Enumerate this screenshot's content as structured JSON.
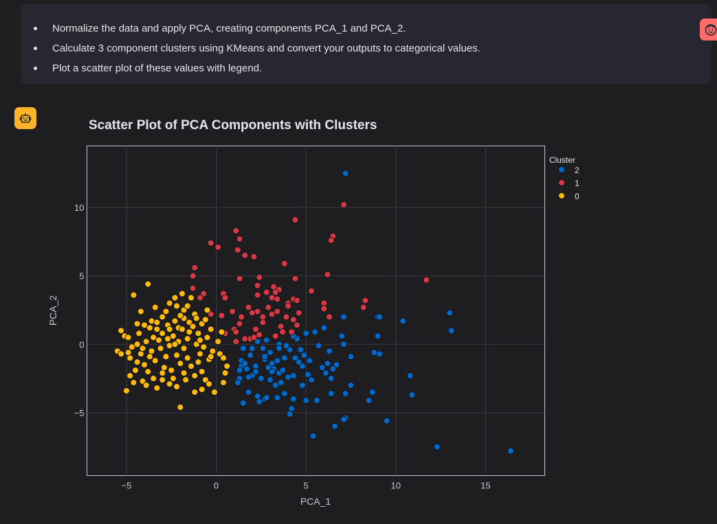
{
  "user_message": {
    "items": [
      "Normalize the data and apply PCA, creating components PCA_1 and PCA_2.",
      "Calculate 3 component clusters using KMeans and convert your outputs to categorical values.",
      "Plot a scatter plot of these values with legend."
    ],
    "avatar_icon": "user-face-icon"
  },
  "assistant": {
    "avatar_icon": "robot-icon"
  },
  "colors": {
    "cluster_2": "#0068c9",
    "cluster_1": "#d33a46",
    "cluster_0": "#fdb90f",
    "user_avatar": "#ff6b6b",
    "bot_avatar": "#fdb42b"
  },
  "chart_data": {
    "type": "scatter",
    "title": "Scatter Plot of PCA Components with Clusters",
    "xlabel": "PCA_1",
    "ylabel": "PCA_2",
    "xlim": [
      -7.2,
      18.3
    ],
    "ylim": [
      -9.6,
      14.5
    ],
    "xticks": [
      -5,
      0,
      5,
      10,
      15
    ],
    "yticks": [
      -5,
      0,
      5,
      10
    ],
    "grid": true,
    "legend": {
      "title": "Cluster",
      "placement": "right",
      "order": [
        "2",
        "1",
        "0"
      ]
    },
    "series": [
      {
        "name": "2",
        "color": "#0068c9",
        "points": [
          [
            7.2,
            12.5
          ],
          [
            13,
            2.3
          ],
          [
            13.1,
            1.0
          ],
          [
            10.4,
            1.7
          ],
          [
            9.0,
            2.0
          ],
          [
            9.1,
            2.0
          ],
          [
            7.1,
            2.0
          ],
          [
            9.0,
            0.6
          ],
          [
            8.8,
            -0.6
          ],
          [
            9.1,
            -0.7
          ],
          [
            7.5,
            -0.9
          ],
          [
            7.0,
            0.6
          ],
          [
            7.1,
            0
          ],
          [
            6.0,
            1.2
          ],
          [
            5.5,
            0.9
          ],
          [
            5.0,
            0.8
          ],
          [
            4.5,
            0.4
          ],
          [
            4.7,
            -0.4
          ],
          [
            4.1,
            -0.4
          ],
          [
            3.5,
            0
          ],
          [
            2.8,
            0.3
          ],
          [
            2.3,
            0.2
          ],
          [
            2.6,
            -0.3
          ],
          [
            2.0,
            -0.3
          ],
          [
            1.5,
            -0.3
          ],
          [
            1.4,
            -1.2
          ],
          [
            1.4,
            -1.6
          ],
          [
            1.7,
            -1.8
          ],
          [
            2.2,
            -1.6
          ],
          [
            2.7,
            -1.1
          ],
          [
            3.1,
            -1.4
          ],
          [
            3.4,
            -1.2
          ],
          [
            3.2,
            -1.8
          ],
          [
            3.5,
            -2.1
          ],
          [
            3.8,
            -1.0
          ],
          [
            4.4,
            -1.0
          ],
          [
            4.8,
            -1.6
          ],
          [
            5.1,
            -2.2
          ],
          [
            5.3,
            -2.6
          ],
          [
            4.8,
            -3.0
          ],
          [
            4.3,
            -2.3
          ],
          [
            4.0,
            -2.4
          ],
          [
            3.6,
            -2.8
          ],
          [
            3.0,
            -2.6
          ],
          [
            2.5,
            -2.5
          ],
          [
            2.2,
            -2.0
          ],
          [
            2.0,
            -2.3
          ],
          [
            1.8,
            -2.4
          ],
          [
            1.3,
            -1.9
          ],
          [
            1.3,
            -2.5
          ],
          [
            1.8,
            -3.5
          ],
          [
            2.3,
            -3.8
          ],
          [
            2.7,
            -4.0
          ],
          [
            3.4,
            -3.9
          ],
          [
            3.8,
            -3.6
          ],
          [
            4.3,
            -4.0
          ],
          [
            5.0,
            -4.1
          ],
          [
            5.6,
            -4.1
          ],
          [
            5.7,
            -0.1
          ],
          [
            6.3,
            -0.5
          ],
          [
            6.2,
            -1.4
          ],
          [
            6.7,
            -1.5
          ],
          [
            6.5,
            -1.8
          ],
          [
            6.1,
            -2.1
          ],
          [
            7.5,
            -3.0
          ],
          [
            7.2,
            -3.6
          ],
          [
            6.4,
            -3.6
          ],
          [
            4.2,
            -4.7
          ],
          [
            4.1,
            -5.1
          ],
          [
            5.4,
            -6.7
          ],
          [
            6.6,
            -6.0
          ],
          [
            7.2,
            -5.4
          ],
          [
            7.1,
            -5.5
          ],
          [
            8.5,
            -4.1
          ],
          [
            8.7,
            -3.5
          ],
          [
            9.5,
            -5.6
          ],
          [
            10.8,
            -2.3
          ],
          [
            10.9,
            -3.7
          ],
          [
            12.3,
            -7.5
          ],
          [
            16.4,
            -7.8
          ],
          [
            1.2,
            -2.8
          ],
          [
            3.0,
            -0.6
          ],
          [
            3.5,
            -0.3
          ],
          [
            4.3,
            0.6
          ],
          [
            2.7,
            -0.9
          ],
          [
            1.9,
            -0.8
          ],
          [
            3.7,
            -1.9
          ],
          [
            3.1,
            -2.0
          ],
          [
            1.6,
            -1.4
          ],
          [
            4.9,
            -0.8
          ],
          [
            5.2,
            -1.2
          ],
          [
            4.6,
            -1.3
          ],
          [
            3.3,
            -3.0
          ],
          [
            2.8,
            -3.9
          ],
          [
            2.4,
            -4.2
          ],
          [
            1.5,
            -4.3
          ],
          [
            5.9,
            -1.7
          ],
          [
            6.4,
            -2.5
          ],
          [
            3.9,
            -0.1
          ],
          [
            2.9,
            -1.7
          ]
        ]
      },
      {
        "name": "1",
        "color": "#d33a46",
        "points": [
          [
            7.1,
            10.2
          ],
          [
            4.4,
            9.1
          ],
          [
            6.5,
            7.9
          ],
          [
            6.4,
            7.6
          ],
          [
            1.1,
            8.3
          ],
          [
            1.3,
            7.7
          ],
          [
            -0.3,
            7.4
          ],
          [
            0.1,
            7.1
          ],
          [
            1.2,
            6.9
          ],
          [
            1.6,
            6.5
          ],
          [
            2.1,
            6.4
          ],
          [
            3.8,
            5.9
          ],
          [
            -1.2,
            5.6
          ],
          [
            6.2,
            5.1
          ],
          [
            11.7,
            4.7
          ],
          [
            1.3,
            4.8
          ],
          [
            -1.3,
            5.0
          ],
          [
            2.4,
            4.9
          ],
          [
            4.4,
            4.8
          ],
          [
            2.3,
            4.3
          ],
          [
            3.2,
            4.2
          ],
          [
            3.5,
            4.0
          ],
          [
            2.8,
            3.8
          ],
          [
            3.3,
            3.8
          ],
          [
            -1.3,
            4.1
          ],
          [
            -0.7,
            3.7
          ],
          [
            0.4,
            3.7
          ],
          [
            5.3,
            3.9
          ],
          [
            2.3,
            3.6
          ],
          [
            3.1,
            3.4
          ],
          [
            3.4,
            3.3
          ],
          [
            0.5,
            3.4
          ],
          [
            -0.9,
            3.4
          ],
          [
            4.3,
            3.3
          ],
          [
            4.0,
            3.0
          ],
          [
            4.5,
            3.2
          ],
          [
            4.0,
            2.8
          ],
          [
            6.0,
            3.0
          ],
          [
            6.0,
            2.6
          ],
          [
            8.3,
            3.2
          ],
          [
            8.2,
            2.7
          ],
          [
            1.8,
            2.7
          ],
          [
            2.9,
            2.7
          ],
          [
            2.3,
            2.4
          ],
          [
            3.1,
            2.2
          ],
          [
            2.0,
            2.3
          ],
          [
            0.9,
            2.4
          ],
          [
            1.4,
            2.0
          ],
          [
            0.3,
            2.1
          ],
          [
            -0.3,
            2.2
          ],
          [
            3.9,
            2.0
          ],
          [
            4.6,
            2.3
          ],
          [
            6.3,
            2.0
          ],
          [
            4.3,
            1.8
          ],
          [
            4.5,
            1.4
          ],
          [
            3.6,
            1.3
          ],
          [
            3.7,
            0.9
          ],
          [
            3.3,
            0.6
          ],
          [
            2.2,
            1.1
          ],
          [
            2.4,
            0.7
          ],
          [
            1.9,
            0.4
          ],
          [
            2.1,
            0.5
          ],
          [
            1.0,
            1.1
          ],
          [
            1.1,
            0.9
          ],
          [
            0.5,
            0.8
          ],
          [
            1.6,
            0.4
          ],
          [
            1.1,
            0.2
          ],
          [
            1.3,
            1.5
          ],
          [
            2.6,
            1.6
          ],
          [
            4.2,
            0.9
          ],
          [
            3.4,
            2.4
          ],
          [
            2.6,
            2.0
          ]
        ]
      },
      {
        "name": "0",
        "color": "#fdb90f",
        "points": [
          [
            -3.8,
            4.4
          ],
          [
            -4.6,
            3.6
          ],
          [
            -3.4,
            2.7
          ],
          [
            -4.2,
            2.4
          ],
          [
            -2.3,
            3.4
          ],
          [
            -2.6,
            3.0
          ],
          [
            -2.2,
            2.8
          ],
          [
            -1.9,
            3.7
          ],
          [
            -1.4,
            3.4
          ],
          [
            -0.5,
            2.5
          ],
          [
            -1.8,
            2.5
          ],
          [
            -2.8,
            2.4
          ],
          [
            -3.0,
            2.0
          ],
          [
            -3.6,
            1.7
          ],
          [
            -4.4,
            1.5
          ],
          [
            -5.3,
            1.0
          ],
          [
            -5.1,
            0.6
          ],
          [
            -4.9,
            0.5
          ],
          [
            -4.0,
            1.4
          ],
          [
            -3.7,
            1.2
          ],
          [
            -3.3,
            1.6
          ],
          [
            -2.7,
            1.4
          ],
          [
            -2.3,
            1.7
          ],
          [
            -1.8,
            1.9
          ],
          [
            -1.2,
            2.2
          ],
          [
            -1.5,
            1.6
          ],
          [
            -0.8,
            1.5
          ],
          [
            -0.3,
            1.1
          ],
          [
            0.3,
            0.9
          ],
          [
            -0.5,
            0.5
          ],
          [
            -1.0,
            0.8
          ],
          [
            -1.5,
            0.9
          ],
          [
            -2.1,
            1.2
          ],
          [
            -2.6,
            1.1
          ],
          [
            -3.0,
            0.8
          ],
          [
            -3.5,
            0.5
          ],
          [
            -3.9,
            0.2
          ],
          [
            -4.4,
            0.0
          ],
          [
            -4.7,
            -0.2
          ],
          [
            -5.5,
            -0.5
          ],
          [
            -5.3,
            -0.7
          ],
          [
            -4.8,
            -1.0
          ],
          [
            -4.2,
            -0.7
          ],
          [
            -3.6,
            -0.5
          ],
          [
            -3.1,
            -0.3
          ],
          [
            -2.6,
            -0.1
          ],
          [
            -2.1,
            0.2
          ],
          [
            -1.6,
            0.4
          ],
          [
            -1.1,
            0.0
          ],
          [
            -0.7,
            -0.2
          ],
          [
            -0.2,
            -0.5
          ],
          [
            0.2,
            -0.7
          ],
          [
            0.4,
            -1.0
          ],
          [
            -0.4,
            -1.1
          ],
          [
            -1.0,
            -1.3
          ],
          [
            -1.6,
            -1.0
          ],
          [
            -2.2,
            -0.8
          ],
          [
            -2.8,
            -0.9
          ],
          [
            -3.4,
            -1.2
          ],
          [
            -4.0,
            -1.5
          ],
          [
            -4.5,
            -1.9
          ],
          [
            -4.8,
            -2.3
          ],
          [
            -4.6,
            -2.8
          ],
          [
            -4.1,
            -2.7
          ],
          [
            -3.5,
            -2.5
          ],
          [
            -3.0,
            -2.1
          ],
          [
            -2.4,
            -2.5
          ],
          [
            -1.8,
            -2.1
          ],
          [
            -1.2,
            -2.3
          ],
          [
            -0.8,
            -2.0
          ],
          [
            -0.6,
            -2.6
          ],
          [
            -0.8,
            -3.3
          ],
          [
            -1.2,
            -3.5
          ],
          [
            -0.4,
            -2.9
          ],
          [
            -0.1,
            -3.5
          ],
          [
            0.4,
            -2.8
          ],
          [
            0.5,
            -2.1
          ],
          [
            0.6,
            -1.6
          ],
          [
            -2.0,
            -4.6
          ],
          [
            -5.0,
            -3.4
          ],
          [
            -3.3,
            -3.2
          ],
          [
            -2.6,
            -2.9
          ],
          [
            -3.8,
            -2.0
          ],
          [
            -3.2,
            0.3
          ],
          [
            -2.4,
            0.6
          ],
          [
            -1.9,
            1.1
          ],
          [
            -1.3,
            1.3
          ],
          [
            -0.6,
            1.8
          ],
          [
            -4.3,
            0.8
          ],
          [
            -4.9,
            -0.6
          ],
          [
            -2.9,
            -1.7
          ],
          [
            -2.0,
            -1.4
          ],
          [
            -1.4,
            -1.6
          ],
          [
            -0.9,
            -0.7
          ],
          [
            -0.3,
            -0.9
          ],
          [
            0.1,
            0.2
          ],
          [
            -2.3,
            0.0
          ],
          [
            -2.7,
            0.4
          ],
          [
            -3.7,
            -0.9
          ],
          [
            -4.1,
            -0.3
          ],
          [
            -3.3,
            1.1
          ],
          [
            -2.0,
            2.1
          ],
          [
            -1.6,
            2.8
          ],
          [
            -1.1,
            1.9
          ],
          [
            -0.9,
            0.3
          ],
          [
            -1.8,
            -0.3
          ],
          [
            -3.0,
            -2.6
          ],
          [
            -2.5,
            -1.9
          ],
          [
            -1.7,
            -2.6
          ],
          [
            -4.4,
            -1.3
          ],
          [
            -3.9,
            -3.0
          ],
          [
            -2.2,
            -3.1
          ]
        ]
      }
    ]
  }
}
